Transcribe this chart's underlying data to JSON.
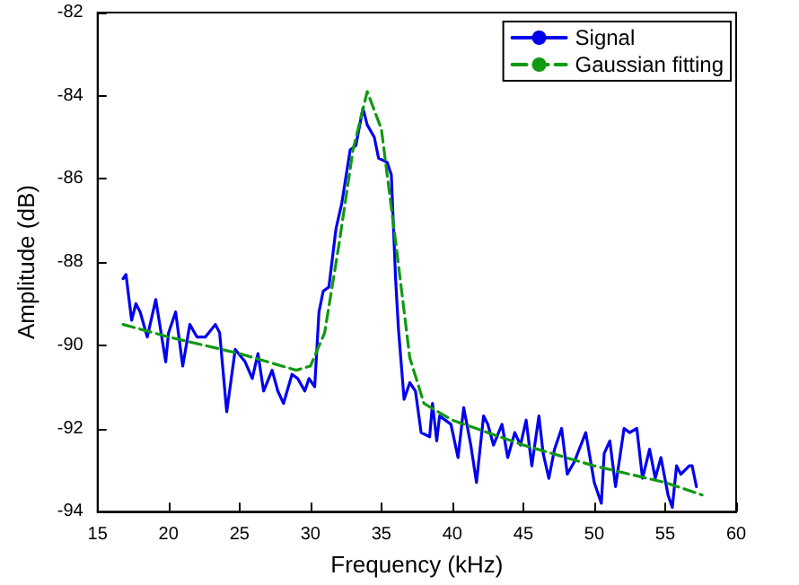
{
  "chart_data": {
    "type": "line",
    "xlabel": "Frequency (kHz)",
    "ylabel": "Amplitude (dB)",
    "xlim": [
      15,
      60
    ],
    "xticks": [
      15,
      20,
      25,
      30,
      35,
      40,
      45,
      50,
      55,
      60
    ],
    "ylim": [
      -94,
      -82
    ],
    "yticks": [
      -94,
      -92,
      -90,
      -88,
      -86,
      -84,
      -82
    ],
    "grid": false,
    "legend": "top right",
    "marker": "none",
    "series": [
      {
        "name": "Signal",
        "color": "#0000ee",
        "line_style": "solid",
        "x": [
          16.8,
          17.0,
          17.4,
          17.7,
          18.0,
          18.5,
          19.1,
          19.8,
          20.0,
          20.5,
          21.0,
          21.5,
          22.0,
          22.6,
          23.3,
          23.6,
          24.1,
          24.7,
          25.4,
          25.9,
          26.3,
          26.7,
          27.3,
          27.7,
          28.1,
          28.7,
          29.1,
          29.6,
          29.9,
          30.3,
          30.6,
          30.9,
          31.3,
          31.8,
          32.2,
          32.8,
          33.2,
          33.7,
          34.0,
          34.5,
          34.8,
          35.4,
          35.7,
          36.0,
          36.2,
          36.6,
          37.0,
          37.4,
          37.8,
          38.4,
          38.6,
          38.9,
          39.1,
          39.9,
          40.4,
          40.8,
          41.3,
          41.7,
          42.2,
          42.5,
          42.9,
          43.5,
          43.9,
          44.4,
          44.8,
          45.2,
          45.6,
          46.1,
          46.4,
          46.8,
          47.2,
          47.7,
          48.1,
          48.6,
          49.4,
          50.0,
          50.5,
          50.7,
          51.1,
          51.5,
          52.1,
          52.5,
          53.0,
          53.4,
          53.9,
          54.3,
          54.7,
          55.2,
          55.5,
          55.8,
          56.1,
          56.7,
          56.9,
          57.2
        ],
        "values": [
          -88.4,
          -88.3,
          -89.4,
          -89.0,
          -89.2,
          -89.8,
          -88.9,
          -90.4,
          -89.7,
          -89.2,
          -90.5,
          -89.5,
          -89.8,
          -89.8,
          -89.5,
          -89.7,
          -91.6,
          -90.1,
          -90.4,
          -90.8,
          -90.2,
          -91.1,
          -90.6,
          -91.1,
          -91.4,
          -90.7,
          -90.8,
          -91.1,
          -90.8,
          -91.0,
          -89.2,
          -88.7,
          -88.6,
          -87.2,
          -86.6,
          -85.3,
          -85.2,
          -84.3,
          -84.7,
          -85.0,
          -85.5,
          -85.6,
          -85.9,
          -88.4,
          -89.6,
          -91.3,
          -90.9,
          -91.1,
          -92.1,
          -92.2,
          -91.4,
          -92.3,
          -91.7,
          -91.9,
          -92.7,
          -91.5,
          -92.4,
          -93.3,
          -91.7,
          -91.9,
          -92.4,
          -91.9,
          -92.7,
          -92.1,
          -92.4,
          -91.8,
          -92.9,
          -91.7,
          -92.6,
          -93.2,
          -92.5,
          -92.0,
          -93.1,
          -92.8,
          -92.1,
          -93.3,
          -93.8,
          -92.6,
          -92.3,
          -93.4,
          -92.0,
          -92.1,
          -92.0,
          -93.2,
          -92.5,
          -93.2,
          -92.7,
          -93.6,
          -93.9,
          -92.9,
          -93.1,
          -92.9,
          -92.9,
          -93.4
        ]
      },
      {
        "name": "Gaussian fitting",
        "color": "#119911",
        "line_style": "dashed",
        "x": [
          16.8,
          20,
          25,
          29,
          30,
          31,
          32,
          33,
          34,
          35,
          36,
          37,
          38,
          40,
          45,
          50,
          55,
          57.6
        ],
        "values": [
          -89.5,
          -89.8,
          -90.2,
          -90.6,
          -90.5,
          -89.7,
          -87.6,
          -85.3,
          -83.9,
          -84.8,
          -87.5,
          -90.3,
          -91.4,
          -91.8,
          -92.4,
          -92.9,
          -93.3,
          -93.6
        ]
      }
    ]
  }
}
